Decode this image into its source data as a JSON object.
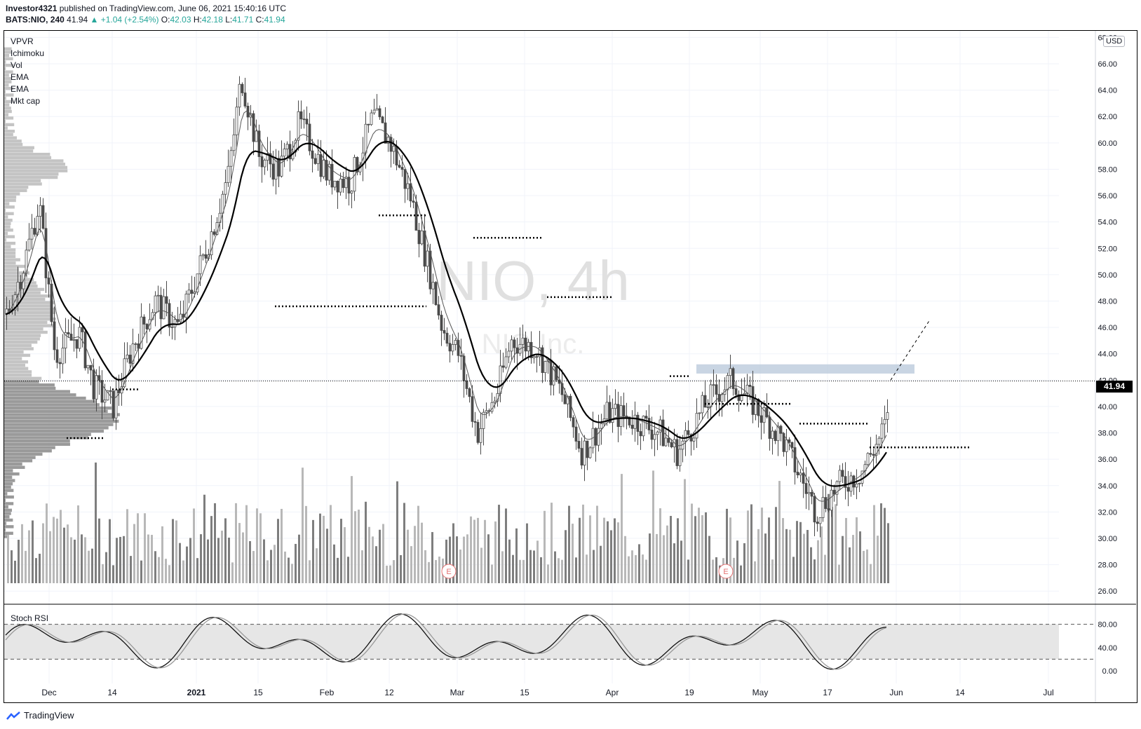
{
  "header": {
    "author": "Investor4321",
    "published": "published on TradingView.com, June 06, 2021 15:40:16 UTC",
    "symbol": "BATS:NIO, 240",
    "last": "41.94",
    "change": "▲ +1.04 (+2.54%)",
    "o_label": "O:",
    "o_val": "42.03",
    "h_label": "H:",
    "h_val": "42.18",
    "l_label": "L:",
    "l_val": "41.71",
    "c_label": "C:",
    "c_val": "41.94"
  },
  "indicators": [
    "VPVR",
    "Ichimoku",
    "Vol",
    "EMA",
    "EMA",
    "Mkt cap"
  ],
  "currency": "USD",
  "last_price_tag": "41.94",
  "watermark": {
    "symbol": "NIO, 4h",
    "name": "NIO Inc."
  },
  "earnings_marker": "E",
  "stoch_label": "Stoch RSI",
  "footer": {
    "brand": "TradingView"
  },
  "colors": {
    "candle": "#4a4a4a",
    "ema_slow": "#000000",
    "ema_fast": "#333333",
    "volume": "#8a8a8a",
    "zone": "#b7c7d9",
    "stoch_band": "#e6e6e6"
  },
  "chart_data": {
    "type": "candlestick",
    "symbol": "BATS:NIO",
    "interval": "240",
    "y_ticks": [
      "26.00",
      "28.00",
      "30.00",
      "32.00",
      "34.00",
      "36.00",
      "38.00",
      "40.00",
      "42.00",
      "44.00",
      "46.00",
      "48.00",
      "50.00",
      "52.00",
      "54.00",
      "56.00",
      "58.00",
      "60.00",
      "62.00",
      "64.00",
      "66.00",
      "68.00"
    ],
    "ylim": [
      25,
      68.5
    ],
    "x_ticks": [
      "Dec",
      "14",
      "2021",
      "15",
      "Feb",
      "12",
      "Mar",
      "15",
      "Apr",
      "19",
      "May",
      "17",
      "Jun",
      "14",
      "Jul"
    ],
    "last_price": 41.94,
    "close_path": [
      {
        "x": "Nov 23",
        "y": 47.0
      },
      {
        "x": "Nov 27",
        "y": 50.5
      },
      {
        "x": "Nov 30",
        "y": 55.5
      },
      {
        "x": "Dec 2",
        "y": 44.0
      },
      {
        "x": "Dec 7",
        "y": 45.5
      },
      {
        "x": "Dec 10",
        "y": 41.5
      },
      {
        "x": "Dec 14",
        "y": 40.0
      },
      {
        "x": "Dec 18",
        "y": 44.5
      },
      {
        "x": "Dec 23",
        "y": 48.0
      },
      {
        "x": "Dec 28",
        "y": 46.0
      },
      {
        "x": "Jan 4",
        "y": 53.0
      },
      {
        "x": "Jan 8",
        "y": 57.5
      },
      {
        "x": "Jan 11",
        "y": 65.0
      },
      {
        "x": "Jan 15",
        "y": 59.0
      },
      {
        "x": "Jan 20",
        "y": 58.0
      },
      {
        "x": "Jan 25",
        "y": 61.5
      },
      {
        "x": "Feb 1",
        "y": 57.5
      },
      {
        "x": "Feb 5",
        "y": 57.0
      },
      {
        "x": "Feb 9",
        "y": 62.0
      },
      {
        "x": "Feb 12",
        "y": 60.0
      },
      {
        "x": "Feb 17",
        "y": 56.0
      },
      {
        "x": "Feb 22",
        "y": 50.0
      },
      {
        "x": "Feb 25",
        "y": 46.0
      },
      {
        "x": "Mar 1",
        "y": 44.0
      },
      {
        "x": "Mar 5",
        "y": 38.0
      },
      {
        "x": "Mar 9",
        "y": 41.0
      },
      {
        "x": "Mar 12",
        "y": 45.0
      },
      {
        "x": "Mar 17",
        "y": 44.5
      },
      {
        "x": "Mar 22",
        "y": 41.0
      },
      {
        "x": "Mar 26",
        "y": 36.5
      },
      {
        "x": "Mar 31",
        "y": 39.5
      },
      {
        "x": "Apr 6",
        "y": 39.0
      },
      {
        "x": "Apr 12",
        "y": 38.0
      },
      {
        "x": "Apr 16",
        "y": 36.5
      },
      {
        "x": "Apr 22",
        "y": 40.5
      },
      {
        "x": "Apr 26",
        "y": 42.0
      },
      {
        "x": "Apr 30",
        "y": 40.0
      },
      {
        "x": "May 6",
        "y": 37.5
      },
      {
        "x": "May 12",
        "y": 33.5
      },
      {
        "x": "May 14",
        "y": 32.0
      },
      {
        "x": "May 19",
        "y": 34.0
      },
      {
        "x": "May 24",
        "y": 35.0
      },
      {
        "x": "May 28",
        "y": 37.5
      },
      {
        "x": "Jun 1",
        "y": 40.5
      },
      {
        "x": "Jun 2",
        "y": 42.5
      },
      {
        "x": "Jun 4",
        "y": 41.94
      }
    ],
    "resistance_zone": [
      42.5,
      43.2
    ],
    "stoch_rsi": {
      "levels": [
        20,
        80
      ],
      "ticks": [
        "0.00",
        "40.00",
        "80.00"
      ]
    }
  }
}
